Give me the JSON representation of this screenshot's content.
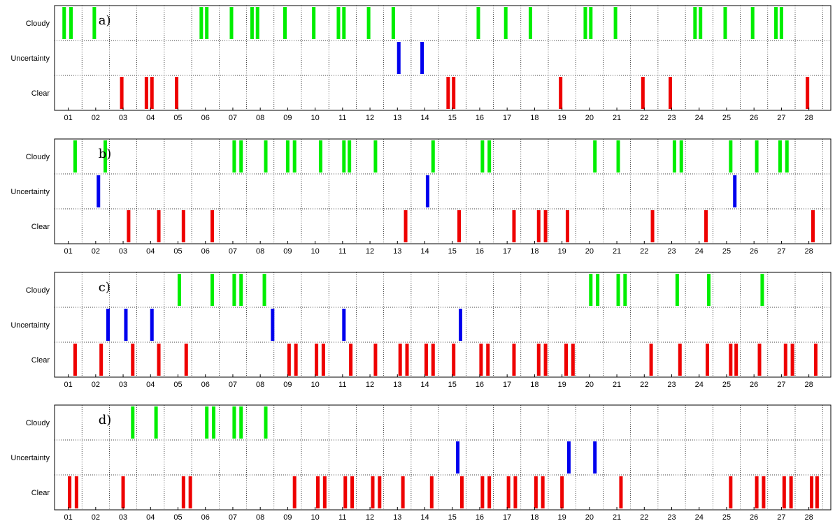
{
  "chart_data": [
    {
      "type": "event-timeline",
      "label": "a)",
      "rows": [
        "Cloudy",
        "Uncertainty",
        "Clear"
      ],
      "x_ticks": [
        "01",
        "02",
        "03",
        "04",
        "05",
        "06",
        "07",
        "08",
        "09",
        "10",
        "11",
        "12",
        "13",
        "14",
        "15",
        "16",
        "17",
        "18",
        "19",
        "20",
        "21",
        "22",
        "23",
        "24",
        "25",
        "26",
        "27",
        "28"
      ],
      "xlim": [
        0.5,
        28.8
      ],
      "grid": true,
      "series": [
        {
          "category": "Cloudy",
          "color": "#00ee00",
          "x": [
            0.85,
            1.1,
            1.95,
            5.85,
            6.05,
            6.95,
            7.7,
            7.9,
            8.9,
            9.95,
            10.85,
            11.05,
            11.95,
            12.85,
            15.95,
            16.95,
            17.85,
            19.85,
            20.05,
            20.95,
            23.85,
            24.05,
            24.95,
            25.95,
            26.8,
            27.0
          ]
        },
        {
          "category": "Uncertainty",
          "color": "#0000ee",
          "x": [
            13.05,
            13.9
          ]
        },
        {
          "category": "Clear",
          "color": "#ee0000",
          "x": [
            2.95,
            3.85,
            4.05,
            4.95,
            14.85,
            15.05,
            18.95,
            21.95,
            22.95,
            27.95
          ]
        }
      ]
    },
    {
      "type": "event-timeline",
      "label": "b)",
      "rows": [
        "Cloudy",
        "Uncertainty",
        "Clear"
      ],
      "x_ticks": [
        "01",
        "02",
        "03",
        "04",
        "05",
        "06",
        "07",
        "08",
        "09",
        "10",
        "11",
        "12",
        "13",
        "14",
        "15",
        "16",
        "17",
        "18",
        "19",
        "20",
        "21",
        "22",
        "23",
        "24",
        "25",
        "26",
        "27",
        "28"
      ],
      "xlim": [
        0.5,
        28.8
      ],
      "grid": true,
      "series": [
        {
          "category": "Cloudy",
          "color": "#00ee00",
          "x": [
            1.25,
            2.35,
            7.05,
            7.3,
            8.2,
            9.0,
            9.25,
            10.2,
            11.05,
            11.25,
            12.2,
            14.3,
            16.1,
            16.35,
            20.2,
            21.05,
            23.1,
            23.35,
            25.15,
            26.1,
            26.95,
            27.2
          ]
        },
        {
          "category": "Uncertainty",
          "color": "#0000ee",
          "x": [
            2.1,
            14.1,
            25.3
          ]
        },
        {
          "category": "Clear",
          "color": "#ee0000",
          "x": [
            3.2,
            4.3,
            5.2,
            6.25,
            13.3,
            15.25,
            17.25,
            18.15,
            18.4,
            19.2,
            22.3,
            24.25,
            28.15
          ]
        }
      ]
    },
    {
      "type": "event-timeline",
      "label": "c)",
      "rows": [
        "Cloudy",
        "Uncertainty",
        "Clear"
      ],
      "x_ticks": [
        "01",
        "02",
        "03",
        "04",
        "05",
        "06",
        "07",
        "08",
        "09",
        "10",
        "11",
        "12",
        "13",
        "14",
        "15",
        "16",
        "17",
        "18",
        "19",
        "20",
        "21",
        "22",
        "23",
        "24",
        "25",
        "26",
        "27",
        "28"
      ],
      "xlim": [
        0.5,
        28.8
      ],
      "grid": true,
      "series": [
        {
          "category": "Cloudy",
          "color": "#00ee00",
          "x": [
            5.05,
            6.25,
            7.05,
            7.3,
            8.15,
            20.05,
            20.3,
            21.05,
            21.3,
            23.2,
            24.35,
            26.3
          ]
        },
        {
          "category": "Uncertainty",
          "color": "#0000ee",
          "x": [
            2.45,
            3.1,
            4.05,
            8.45,
            11.05,
            15.3
          ]
        },
        {
          "category": "Clear",
          "color": "#ee0000",
          "x": [
            1.25,
            2.2,
            3.35,
            4.3,
            5.3,
            9.05,
            9.3,
            10.05,
            10.3,
            11.3,
            12.2,
            13.1,
            13.35,
            14.05,
            14.3,
            15.05,
            16.05,
            16.3,
            17.25,
            18.15,
            18.4,
            19.15,
            19.4,
            22.25,
            23.3,
            24.3,
            25.15,
            25.35,
            26.2,
            27.15,
            27.4,
            28.25
          ]
        }
      ]
    },
    {
      "type": "event-timeline",
      "label": "d)",
      "rows": [
        "Cloudy",
        "Uncertainty",
        "Clear"
      ],
      "x_ticks": [
        "01",
        "02",
        "03",
        "04",
        "05",
        "06",
        "07",
        "08",
        "09",
        "10",
        "11",
        "12",
        "13",
        "14",
        "15",
        "16",
        "17",
        "18",
        "19",
        "20",
        "21",
        "22",
        "23",
        "24",
        "25",
        "26",
        "27",
        "28"
      ],
      "xlim": [
        0.5,
        28.8
      ],
      "grid": true,
      "series": [
        {
          "category": "Cloudy",
          "color": "#00ee00",
          "x": [
            3.35,
            4.2,
            6.05,
            6.3,
            7.05,
            7.3,
            8.2
          ]
        },
        {
          "category": "Uncertainty",
          "color": "#0000ee",
          "x": [
            15.2,
            19.25,
            20.2
          ]
        },
        {
          "category": "Clear",
          "color": "#ee0000",
          "x": [
            1.05,
            1.3,
            3.0,
            5.2,
            5.45,
            9.25,
            10.1,
            10.35,
            11.1,
            11.35,
            12.1,
            12.35,
            13.2,
            14.25,
            15.35,
            16.1,
            16.35,
            17.05,
            17.3,
            18.05,
            18.3,
            19.0,
            21.15,
            25.15,
            26.1,
            26.35,
            27.1,
            27.35,
            28.1,
            28.3
          ]
        }
      ]
    }
  ]
}
